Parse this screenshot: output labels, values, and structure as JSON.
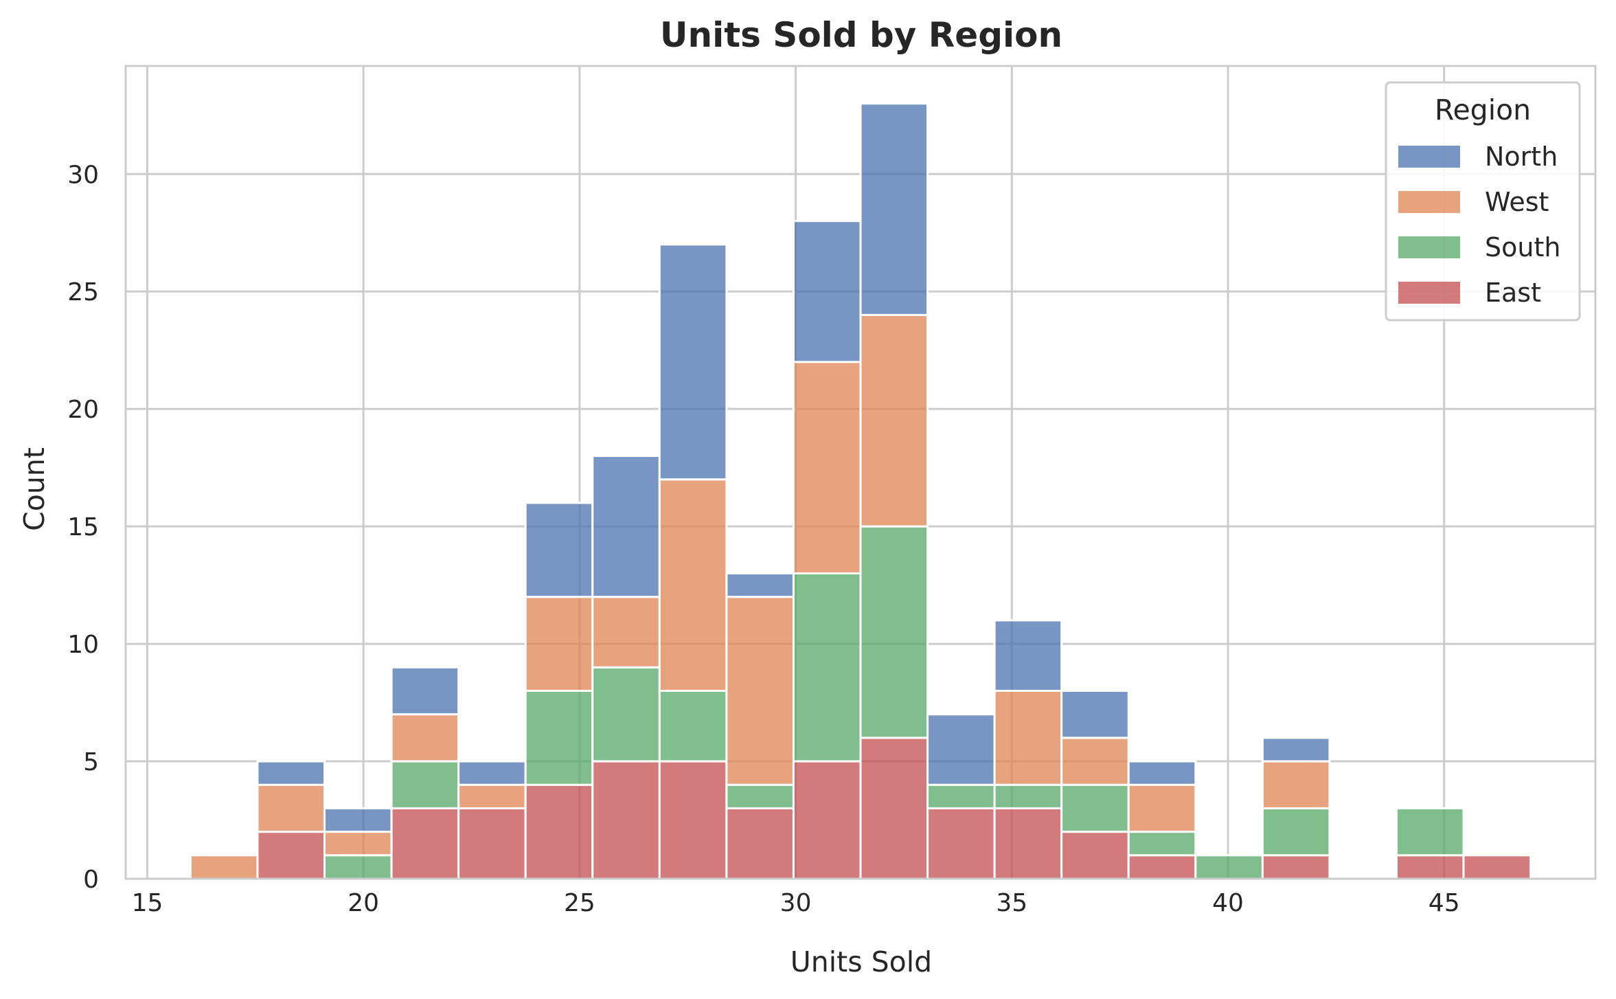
{
  "chart_data": {
    "type": "bar",
    "subtype": "stacked-histogram",
    "title": "Units Sold by Region",
    "xlabel": "Units Sold",
    "ylabel": "Count",
    "xlim": [
      14.5,
      48.5
    ],
    "ylim": [
      0,
      34.6
    ],
    "xticks": [
      15,
      20,
      25,
      30,
      35,
      40,
      45
    ],
    "yticks": [
      0,
      5,
      10,
      15,
      20,
      25,
      30
    ],
    "grid": true,
    "legend": {
      "title": "Region",
      "placement": "top-right"
    },
    "bin_edges": [
      16.0,
      17.55,
      19.1,
      20.65,
      22.2,
      23.75,
      25.3,
      26.85,
      28.4,
      29.95,
      31.5,
      33.05,
      34.6,
      36.15,
      37.7,
      39.25,
      40.8,
      42.35,
      43.9,
      45.45,
      47.0
    ],
    "series": [
      {
        "name": "East",
        "color": "#c44e52",
        "values": [
          0,
          2,
          0,
          3,
          3,
          4,
          5,
          5,
          3,
          5,
          6,
          3,
          3,
          2,
          1,
          0,
          1,
          0,
          1,
          1
        ]
      },
      {
        "name": "South",
        "color": "#55a868",
        "values": [
          0,
          0,
          1,
          2,
          0,
          4,
          4,
          3,
          1,
          8,
          9,
          1,
          1,
          2,
          1,
          1,
          2,
          0,
          2,
          0
        ]
      },
      {
        "name": "West",
        "color": "#dd8452",
        "values": [
          1,
          2,
          1,
          2,
          1,
          4,
          3,
          9,
          8,
          9,
          9,
          0,
          4,
          2,
          2,
          0,
          2,
          0,
          0,
          0
        ]
      },
      {
        "name": "North",
        "color": "#4c72b0",
        "values": [
          0,
          1,
          1,
          2,
          1,
          4,
          6,
          10,
          1,
          6,
          9,
          3,
          3,
          2,
          1,
          0,
          1,
          0,
          0,
          0
        ]
      }
    ],
    "legend_order": [
      "North",
      "West",
      "South",
      "East"
    ]
  }
}
